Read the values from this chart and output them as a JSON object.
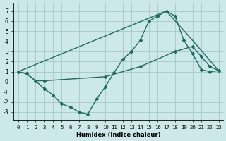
{
  "xlabel": "Humidex (Indice chaleur)",
  "bg_color": "#cce8e8",
  "grid_color": "#aacccc",
  "line_color": "#1e6b60",
  "xlim": [
    -0.5,
    23.5
  ],
  "ylim": [
    -3.8,
    7.8
  ],
  "xticks": [
    0,
    1,
    2,
    3,
    4,
    5,
    6,
    7,
    8,
    9,
    10,
    11,
    12,
    13,
    14,
    15,
    16,
    17,
    18,
    19,
    20,
    21,
    22,
    23
  ],
  "yticks": [
    -3,
    -2,
    -1,
    0,
    1,
    2,
    3,
    4,
    5,
    6,
    7
  ],
  "line1_x": [
    0,
    1,
    2,
    3,
    10,
    14,
    18,
    20,
    21,
    22,
    23
  ],
  "line1_y": [
    1.0,
    0.8,
    0.1,
    0.1,
    0.5,
    1.5,
    3.0,
    3.5,
    2.5,
    1.5,
    1.1
  ],
  "line2_x": [
    0,
    1,
    2,
    3,
    4,
    5,
    6,
    7,
    8,
    9,
    10,
    11,
    12,
    13,
    14,
    15,
    16,
    17,
    18,
    19,
    20,
    21,
    22,
    23
  ],
  "line2_y": [
    1.0,
    0.8,
    0.1,
    -0.7,
    -1.3,
    -2.2,
    -2.5,
    -3.0,
    -3.2,
    -1.7,
    -0.5,
    0.9,
    2.2,
    3.0,
    4.1,
    6.0,
    6.5,
    7.0,
    6.5,
    4.1,
    2.8,
    1.2,
    1.0,
    1.1
  ],
  "line3_x": [
    0,
    17,
    20,
    23
  ],
  "line3_y": [
    1.0,
    7.0,
    4.1,
    1.1
  ]
}
